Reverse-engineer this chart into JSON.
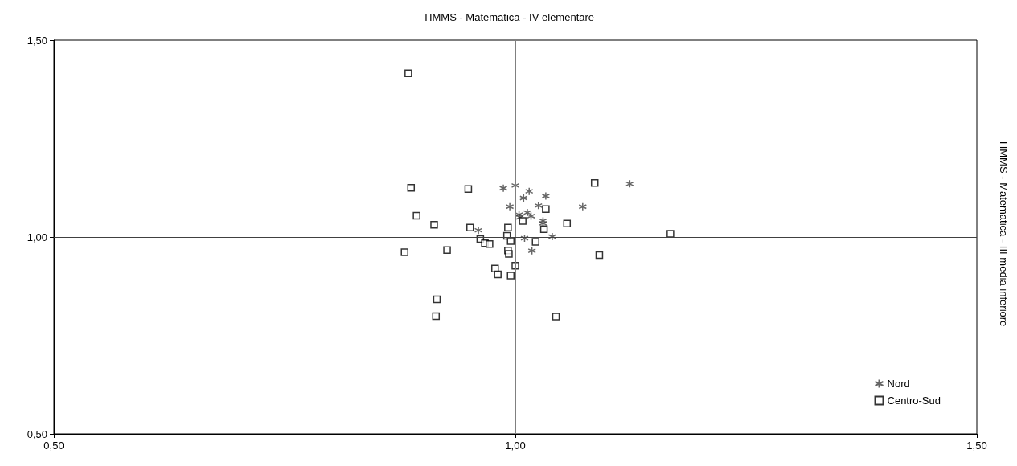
{
  "chart_data": {
    "type": "scatter",
    "title": "TIMMS - Matematica - IV elementare",
    "ylabel": "TIMMS - Matematica - III media inferiore",
    "xlim": [
      0.5,
      1.5
    ],
    "xticks": [
      {
        "value": 0.5,
        "label": "0,50"
      },
      {
        "value": 1.0,
        "label": "1,00"
      },
      {
        "value": 1.5,
        "label": "1,50"
      }
    ],
    "ylim": [
      0.5,
      1.5
    ],
    "yticks": [
      {
        "value": 0.5,
        "label": "0,50"
      },
      {
        "value": 1.0,
        "label": "1,00"
      },
      {
        "value": 1.5,
        "label": "1,50"
      }
    ],
    "grid": false,
    "legend": "bottom right",
    "ref_lines": [
      {
        "axis": "x",
        "value": 1.0,
        "color": "#808080"
      },
      {
        "axis": "y",
        "value": 1.0,
        "color": "#404040"
      }
    ],
    "series": [
      {
        "name": "Nord",
        "color": "#404040",
        "marker": "cross",
        "x": [
          0.987,
          1.0,
          1.015,
          1.009,
          1.033,
          0.994,
          1.025,
          1.004,
          1.013,
          1.017,
          1.005,
          1.03,
          1.03,
          0.96,
          1.01,
          1.04,
          1.018,
          1.073,
          1.124
        ],
        "values": [
          1.124,
          1.131,
          1.116,
          1.099,
          1.104,
          1.077,
          1.08,
          1.057,
          1.062,
          1.053,
          1.05,
          1.041,
          1.035,
          1.017,
          0.997,
          1.001,
          0.965,
          1.077,
          1.135
        ]
      },
      {
        "name": "Centro-Sud",
        "color": "#000000",
        "marker": "square",
        "x": [
          0.887,
          0.949,
          0.893,
          0.912,
          0.951,
          0.992,
          0.991,
          0.995,
          0.962,
          0.967,
          0.972,
          0.88,
          0.926,
          0.992,
          0.993,
          1.0,
          0.978,
          0.981,
          0.995,
          0.915,
          0.914,
          1.044,
          1.008,
          1.033,
          1.031,
          1.022,
          1.056,
          1.086,
          1.091,
          1.168,
          0.884
        ],
        "values": [
          1.125,
          1.122,
          1.054,
          1.031,
          1.024,
          1.024,
          1.003,
          0.99,
          0.995,
          0.984,
          0.982,
          0.961,
          0.967,
          0.966,
          0.957,
          0.927,
          0.92,
          0.905,
          0.902,
          0.842,
          0.799,
          0.798,
          1.041,
          1.071,
          1.02,
          0.988,
          1.034,
          1.137,
          0.954,
          1.008,
          1.416
        ]
      }
    ]
  }
}
